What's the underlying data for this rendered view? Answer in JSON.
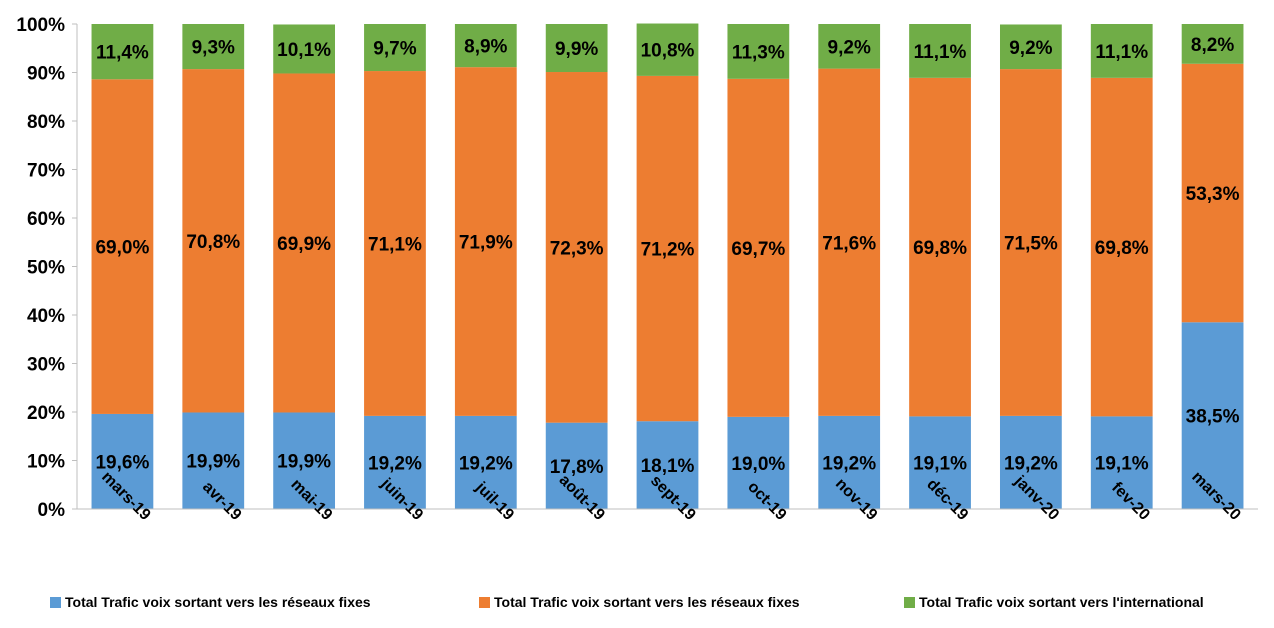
{
  "chart_data": {
    "type": "bar",
    "stacked": true,
    "percent": true,
    "categories": [
      "mars-19",
      "avr-19",
      "mai-19",
      "juin-19",
      "juil-19",
      "août-19",
      "sept-19",
      "oct-19",
      "nov-19",
      "déc-19",
      "janv-20",
      "fev-20",
      "mars-20"
    ],
    "series": [
      {
        "name": "Total Trafic voix sortant  vers les réseaux fixes",
        "color": "#5B9BD5",
        "values": [
          19.6,
          19.9,
          19.9,
          19.2,
          19.2,
          17.8,
          18.1,
          19.0,
          19.2,
          19.1,
          19.2,
          19.1,
          38.5
        ],
        "labels": [
          "19,6%",
          "19,9%",
          "19,9%",
          "19,2%",
          "19,2%",
          "17,8%",
          "18,1%",
          "19,0%",
          "19,2%",
          "19,1%",
          "19,2%",
          "19,1%",
          "38,5%"
        ]
      },
      {
        "name": "Total Trafic voix sortant  vers les réseaux fixes",
        "color": "#ED7D31",
        "values": [
          69.0,
          70.8,
          69.9,
          71.1,
          71.9,
          72.3,
          71.2,
          69.7,
          71.6,
          69.8,
          71.5,
          69.8,
          53.3
        ],
        "labels": [
          "69,0%",
          "70,8%",
          "69,9%",
          "71,1%",
          "71,9%",
          "72,3%",
          "71,2%",
          "69,7%",
          "71,6%",
          "69,8%",
          "71,5%",
          "69,8%",
          "53,3%"
        ]
      },
      {
        "name": "Total Trafic voix sortant vers l'international",
        "color": "#70AD47",
        "values": [
          11.4,
          9.3,
          10.1,
          9.7,
          8.9,
          9.9,
          10.8,
          11.3,
          9.2,
          11.1,
          9.2,
          11.1,
          8.2
        ],
        "labels": [
          "11,4%",
          "9,3%",
          "10,1%",
          "9,7%",
          "8,9%",
          "9,9%",
          "10,8%",
          "11,3%",
          "9,2%",
          "11,1%",
          "9,2%",
          "11,1%",
          "8,2%"
        ]
      }
    ],
    "yticks": [
      "0%",
      "10%",
      "20%",
      "30%",
      "40%",
      "50%",
      "60%",
      "70%",
      "80%",
      "90%",
      "100%"
    ],
    "ylim": [
      0,
      100
    ],
    "grid": false,
    "legend_position": "bottom",
    "title": "",
    "xlabel": "",
    "ylabel": ""
  }
}
